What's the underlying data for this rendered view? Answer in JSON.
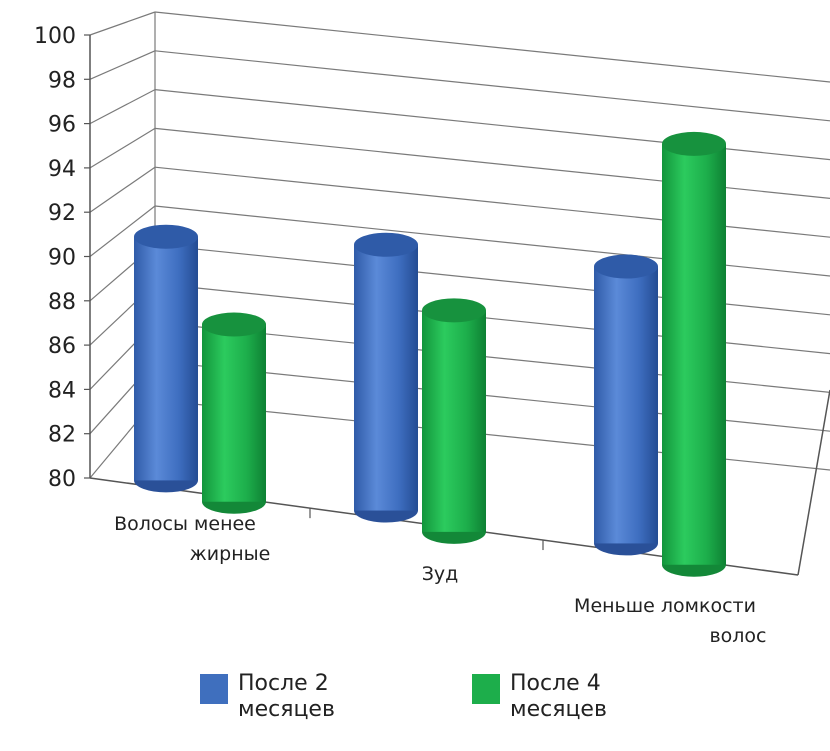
{
  "chart_data": {
    "type": "bar",
    "style": "3d-cylinder",
    "title": "",
    "xlabel": "",
    "ylabel": "",
    "ylim": [
      80,
      100
    ],
    "yticks": [
      "100",
      "98",
      "96",
      "94",
      "92",
      "90",
      "88",
      "86",
      "84",
      "82",
      "80"
    ],
    "categories": [
      [
        "Волосы менее",
        "жирные"
      ],
      [
        "Зуд"
      ],
      [
        "Меньше ломкости",
        "волос"
      ]
    ],
    "series": [
      {
        "name": [
          "После 2",
          "месяцев"
        ],
        "color": "#3F6FBE",
        "values": [
          91,
          92,
          92.5
        ]
      },
      {
        "name": [
          "После 4",
          "месяцев"
        ],
        "color": "#1DAE4B",
        "values": [
          88,
          90,
          99
        ]
      }
    ],
    "grid": true,
    "legend": "bottom"
  }
}
